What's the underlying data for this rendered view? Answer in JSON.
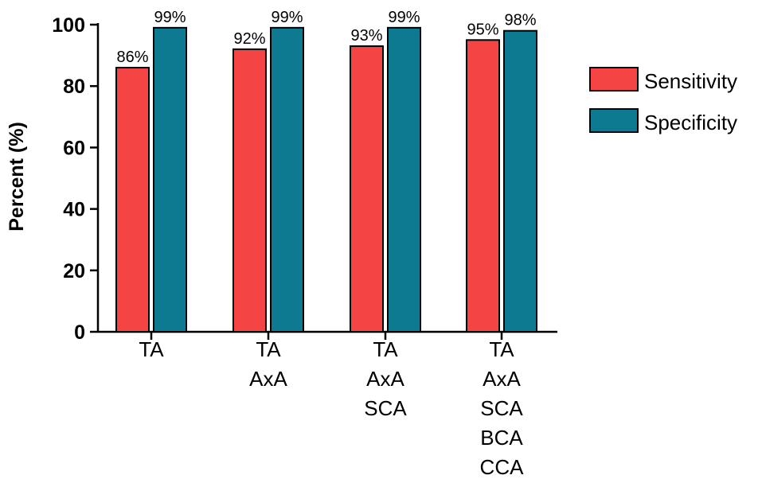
{
  "chart_data": {
    "type": "bar",
    "title": "",
    "xlabel": "",
    "ylabel": "Percent (%)",
    "ylim": [
      0,
      100
    ],
    "yticks": [
      0,
      20,
      40,
      60,
      80,
      100
    ],
    "categories": [
      [
        "TA"
      ],
      [
        "TA",
        "AxA"
      ],
      [
        "TA",
        "AxA",
        "SCA"
      ],
      [
        "TA",
        "AxA",
        "SCA",
        "BCA",
        "CCA"
      ]
    ],
    "series": [
      {
        "name": "Sensitivity",
        "color": "#f44444",
        "values": [
          86,
          92,
          93,
          95
        ],
        "labels": [
          "86%",
          "92%",
          "93%",
          "95%"
        ]
      },
      {
        "name": "Specificity",
        "color": "#0e7a91",
        "values": [
          99,
          99,
          99,
          98
        ],
        "labels": [
          "99%",
          "99%",
          "99%",
          "98%"
        ]
      }
    ],
    "legend": {
      "position": "right",
      "entries": [
        "Sensitivity",
        "Specificity"
      ]
    },
    "grid": false
  }
}
